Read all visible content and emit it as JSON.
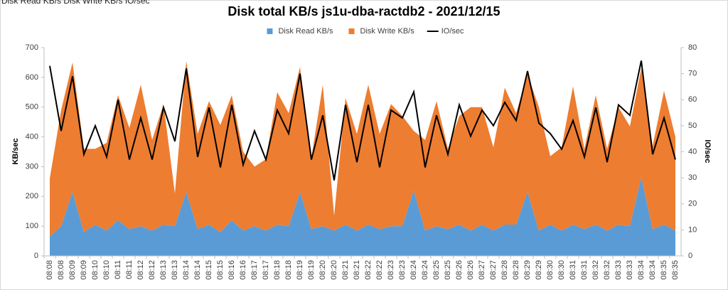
{
  "sheet_header": "Disk Read KB/s Disk Write KB/s IO/sec",
  "chart_data": {
    "type": "stacked-area-line",
    "title": "Disk total KB/s js1u-dba-ractdb2 - 2021/12/15",
    "ylabel": "KB/sec",
    "y2label": "IO/sec",
    "categories": [
      "08:08",
      "08:08",
      "08:09",
      "08:09",
      "08:10",
      "08:10",
      "08:11",
      "08:11",
      "08:12",
      "08:12",
      "08:13",
      "08:13",
      "08:14",
      "08:14",
      "08:15",
      "08:15",
      "08:16",
      "08:16",
      "08:17",
      "08:17",
      "08:18",
      "08:18",
      "08:19",
      "08:19",
      "08:20",
      "08:20",
      "08:21",
      "08:21",
      "08:22",
      "08:22",
      "08:23",
      "08:23",
      "08:24",
      "08:24",
      "08:25",
      "08:25",
      "08:26",
      "08:26",
      "08:27",
      "08:27",
      "08:28",
      "08:28",
      "08:29",
      "08:29",
      "08:30",
      "08:30",
      "08:31",
      "08:31",
      "08:32",
      "08:32",
      "08:33",
      "08:33",
      "08:34",
      "08:34",
      "08:35",
      "08:35"
    ],
    "series": [
      {
        "name": "Disk Read KB/s",
        "color": "#5b9bd5",
        "kind": "area",
        "values": [
          65,
          100,
          215,
          80,
          105,
          85,
          120,
          90,
          100,
          85,
          105,
          100,
          215,
          90,
          105,
          80,
          120,
          85,
          100,
          85,
          105,
          100,
          215,
          90,
          100,
          85,
          105,
          85,
          105,
          90,
          100,
          100,
          220,
          85,
          100,
          90,
          105,
          85,
          105,
          85,
          105,
          105,
          215,
          85,
          105,
          85,
          105,
          90,
          105,
          85,
          105,
          100,
          265,
          90,
          105,
          85
        ]
      },
      {
        "name": "Disk Write KB/s",
        "color": "#ed7d31",
        "kind": "area",
        "values": [
          195,
          390,
          435,
          280,
          255,
          295,
          420,
          340,
          475,
          305,
          405,
          110,
          440,
          320,
          415,
          360,
          420,
          265,
          200,
          240,
          445,
          380,
          420,
          240,
          475,
          50,
          425,
          325,
          470,
          320,
          410,
          370,
          200,
          305,
          420,
          270,
          365,
          415,
          395,
          280,
          460,
          375,
          395,
          415,
          230,
          280,
          465,
          270,
          435,
          275,
          395,
          335,
          365,
          280,
          450,
          315
        ]
      },
      {
        "name": "IO/sec",
        "color": "#000000",
        "kind": "line",
        "axis": "y2",
        "values": [
          73,
          48,
          69,
          39,
          50,
          38,
          60,
          37,
          53,
          37,
          57,
          44,
          72,
          38,
          57,
          34,
          58,
          35,
          48,
          37,
          56,
          47,
          70,
          37,
          54,
          29,
          58,
          36,
          58,
          34,
          56,
          53,
          63,
          34,
          54,
          39,
          58,
          46,
          56,
          50,
          59,
          52,
          71,
          51,
          47,
          41,
          52,
          38,
          57,
          36,
          58,
          54,
          75,
          39,
          53,
          37
        ]
      }
    ],
    "ylim": [
      0,
      700
    ],
    "yticks": [
      0,
      100,
      200,
      300,
      400,
      500,
      600,
      700
    ],
    "y2lim": [
      0,
      80
    ],
    "y2ticks": [
      0,
      10,
      20,
      30,
      40,
      50,
      60,
      70,
      80
    ],
    "grid": false,
    "legend": "top"
  }
}
